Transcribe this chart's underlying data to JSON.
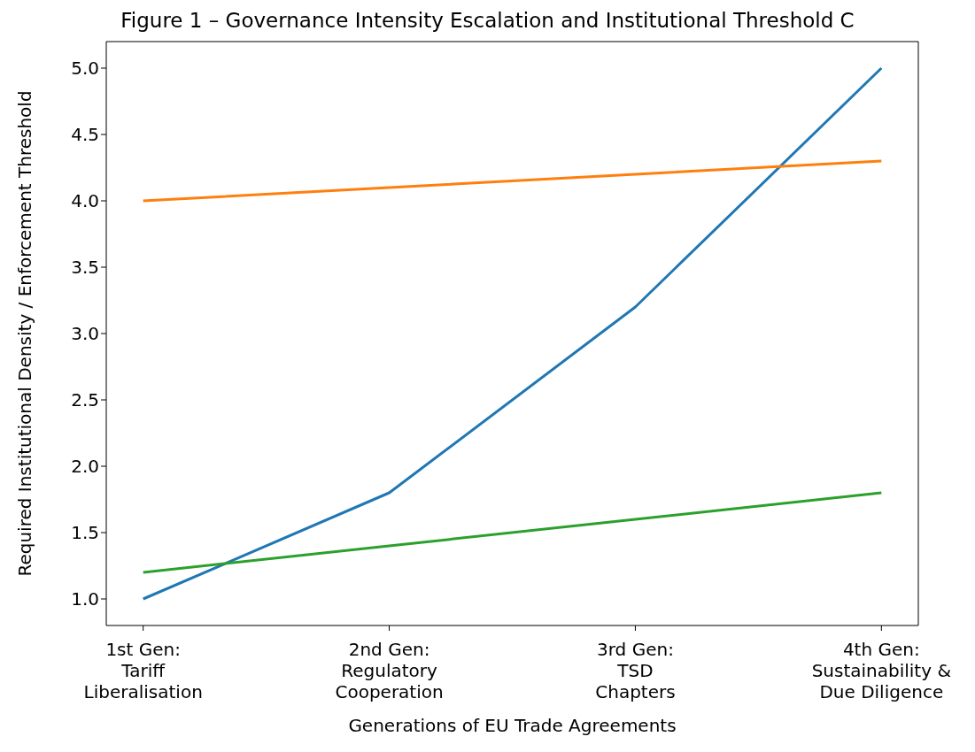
{
  "chart_data": {
    "type": "line",
    "title": "Figure 1 – Governance Intensity Escalation and Institutional Threshold C",
    "xlabel": "Generations of EU Trade Agreements",
    "ylabel": "Required Institutional Density / Enforcement Threshold",
    "categories": [
      "1st Gen:\nTariff\nLiberalisation",
      "2nd Gen:\nRegulatory\nCooperation",
      "3rd Gen:\nTSD\nChapters",
      "4th Gen:\nSustainability &\nDue Diligence"
    ],
    "series": [
      {
        "color": "#1f77b4",
        "values": [
          1.0,
          1.8,
          3.2,
          5.0
        ]
      },
      {
        "color": "#ff7f0e",
        "values": [
          4.0,
          4.1,
          4.2,
          4.3
        ]
      },
      {
        "color": "#2ca02c",
        "values": [
          1.2,
          1.4,
          1.6,
          1.8
        ]
      }
    ],
    "ylim": [
      0.8,
      5.2
    ],
    "yticks": [
      {
        "value": 1,
        "label": "1.0"
      },
      1.5,
      {
        "value": 2,
        "label": "2.0"
      },
      2.5,
      {
        "value": 3,
        "label": "3.0"
      },
      3.5,
      {
        "value": 4,
        "label": "4.0"
      },
      4.5,
      {
        "value": 5,
        "label": "5.0"
      }
    ],
    "grid": false,
    "legend": false,
    "marker": "none",
    "line_style": "solid"
  }
}
